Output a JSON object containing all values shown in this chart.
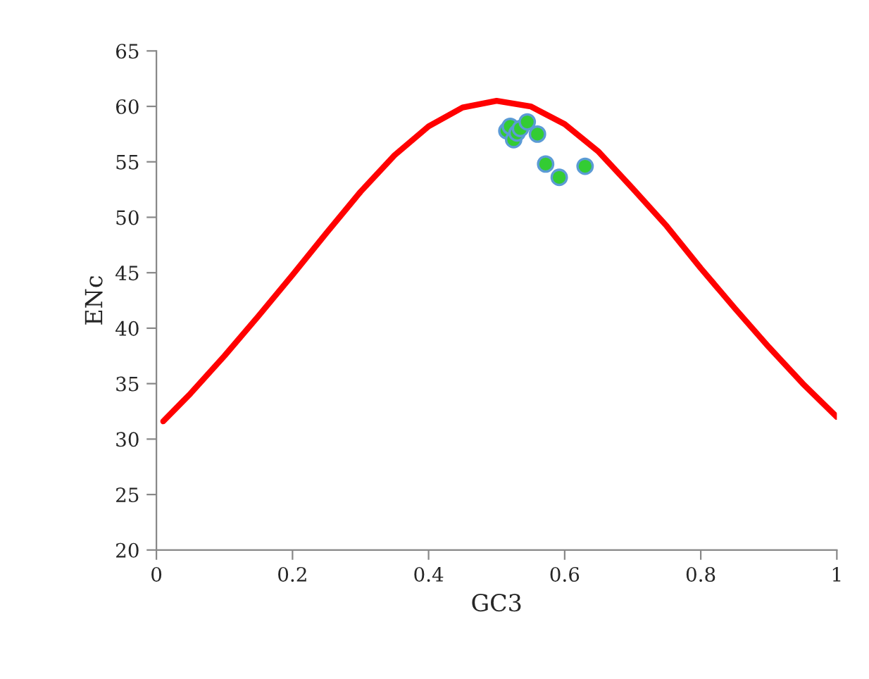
{
  "chart_data": {
    "type": "scatter",
    "xlabel": "GC3",
    "ylabel": "ENc",
    "xlim": [
      0,
      1
    ],
    "xticks": [
      0,
      0.2,
      0.4,
      0.6,
      0.8,
      1
    ],
    "ylim": [
      20,
      65
    ],
    "yticks": [
      20,
      25,
      30,
      35,
      40,
      45,
      50,
      55,
      60,
      65
    ],
    "grid": false,
    "legend": false,
    "series": [
      {
        "type": "line",
        "color": "#ff0000",
        "marker": "none",
        "line_style": "solid",
        "x": [
          0.01,
          0.05,
          0.1,
          0.15,
          0.2,
          0.25,
          0.3,
          0.35,
          0.4,
          0.45,
          0.5,
          0.55,
          0.6,
          0.65,
          0.7,
          0.75,
          0.8,
          0.85,
          0.9,
          0.95,
          1.0
        ],
        "values": [
          31.6,
          34.1,
          37.5,
          41.1,
          44.8,
          48.6,
          52.3,
          55.6,
          58.2,
          59.9,
          60.5,
          60.0,
          58.4,
          55.9,
          52.6,
          49.2,
          45.4,
          41.8,
          38.3,
          35.0,
          32.0
        ]
      },
      {
        "color": "#33cc33",
        "marker": "circle",
        "x": [
          0.515,
          0.52,
          0.525,
          0.53,
          0.535,
          0.545,
          0.56,
          0.572,
          0.592,
          0.63
        ],
        "values": [
          57.8,
          58.2,
          57.0,
          57.6,
          58.0,
          58.6,
          57.5,
          54.8,
          53.6,
          54.6
        ]
      }
    ]
  }
}
